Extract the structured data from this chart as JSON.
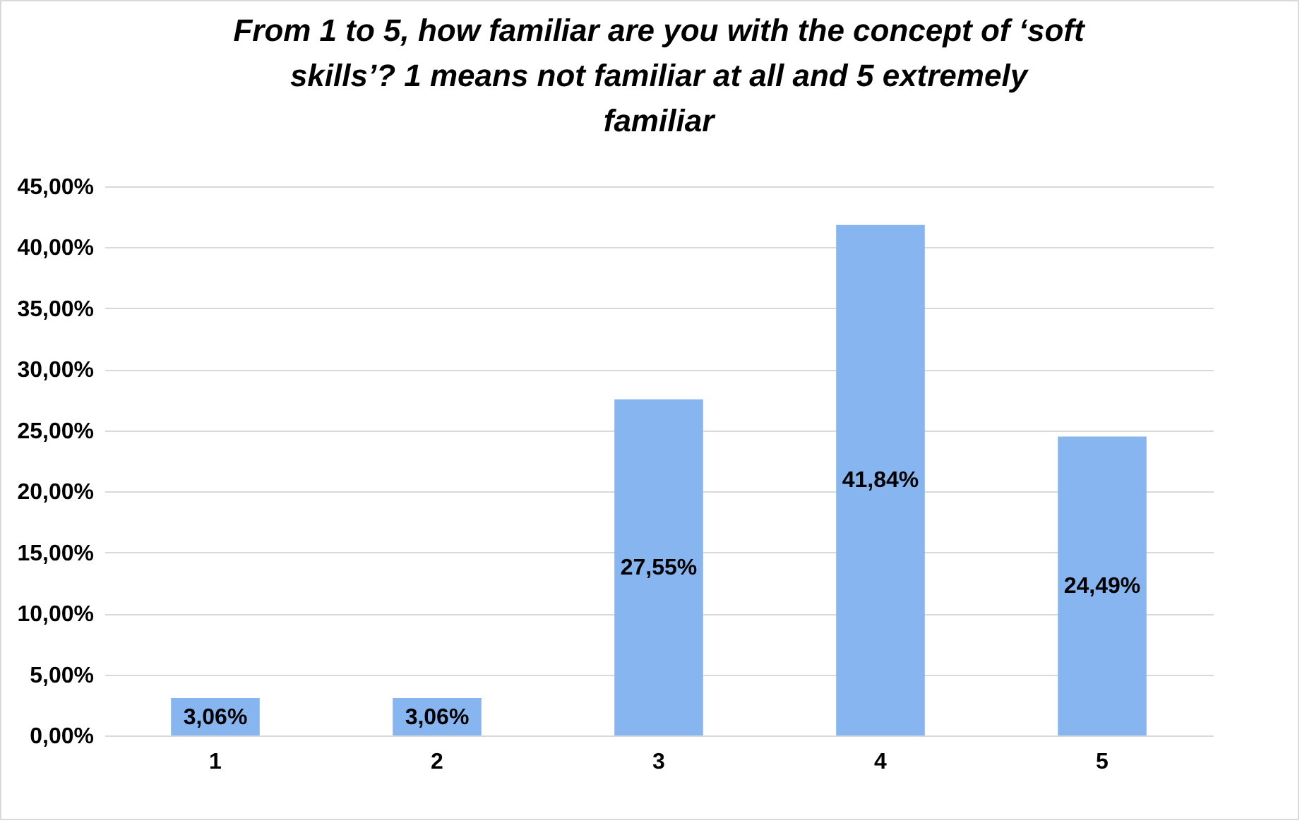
{
  "chart_data": {
    "type": "bar",
    "title": "From 1 to 5, how familiar are you with the concept of ‘soft skills’? 1 means not familiar at all and 5 extremely familiar",
    "categories": [
      "1",
      "2",
      "3",
      "4",
      "5"
    ],
    "values": [
      3.06,
      3.06,
      27.55,
      41.84,
      24.49
    ],
    "color": "#86b5f0",
    "value_labels": [
      "3,06%",
      "3,06%",
      "27,55%",
      "41,84%",
      "24,49%"
    ],
    "ylim": [
      0,
      45
    ],
    "yticks": [
      {
        "value": 0,
        "label": "0,00%"
      },
      {
        "value": 5,
        "label": "5,00%"
      },
      {
        "value": 10,
        "label": "10,00%"
      },
      {
        "value": 15,
        "label": "15,00%"
      },
      {
        "value": 20,
        "label": "20,00%"
      },
      {
        "value": 25,
        "label": "25,00%"
      },
      {
        "value": 30,
        "label": "30,00%"
      },
      {
        "value": 35,
        "label": "35,00%"
      },
      {
        "value": 40,
        "label": "40,00%"
      },
      {
        "value": 45,
        "label": "45,00%"
      }
    ],
    "grid": "y"
  }
}
